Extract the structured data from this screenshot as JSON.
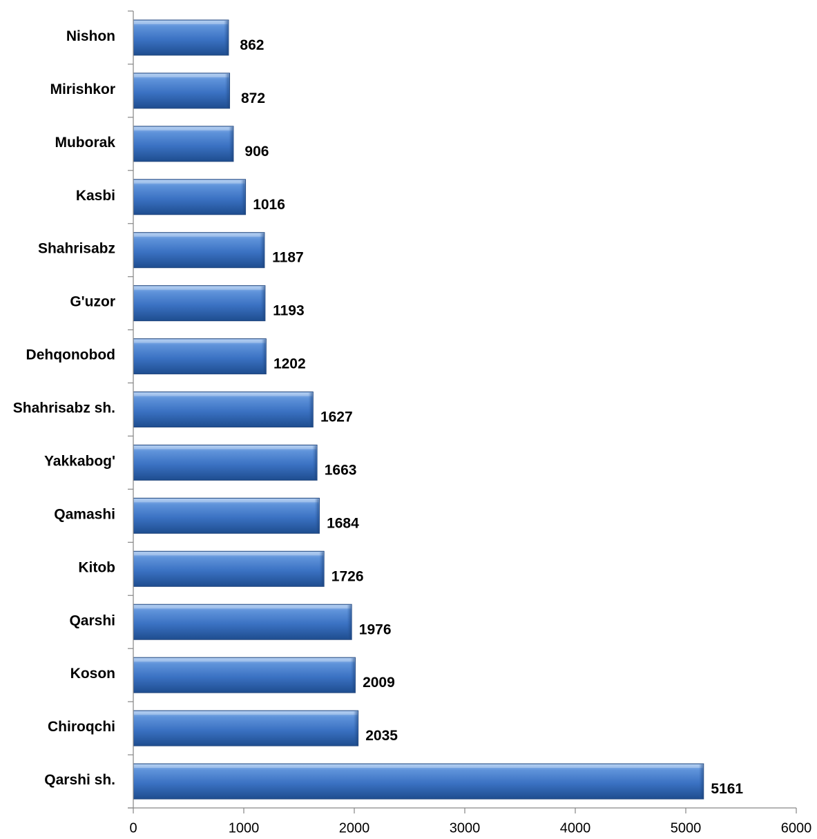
{
  "chart_data": {
    "type": "bar",
    "orientation": "horizontal",
    "title": "",
    "xlabel": "",
    "ylabel": "",
    "categories": [
      "Nishon",
      "Mirishkor",
      "Muborak",
      "Kasbi",
      "Shahrisabz",
      "G'uzor",
      "Dehqonobod",
      "Shahrisabz sh.",
      "Yakkabog'",
      "Qamashi",
      "Kitob",
      "Qarshi",
      "Koson",
      "Chiroqchi",
      "Qarshi sh."
    ],
    "values": [
      862,
      872,
      906,
      1016,
      1187,
      1193,
      1202,
      1627,
      1663,
      1684,
      1726,
      1976,
      2009,
      2035,
      5161
    ],
    "value_labels": [
      "862",
      "872",
      "906",
      "1016",
      "1187",
      "1193",
      "1202",
      "1627",
      "1663",
      "1684",
      "1726",
      "1976",
      "2009",
      "2035",
      "5161"
    ],
    "xlim": [
      0,
      6000
    ],
    "x_ticks": [
      "0",
      "1000",
      "2000",
      "3000",
      "4000",
      "5000",
      "6000"
    ],
    "grid": false,
    "bar_color": "#3c74c4",
    "bar_edge_color": "#24487e"
  }
}
